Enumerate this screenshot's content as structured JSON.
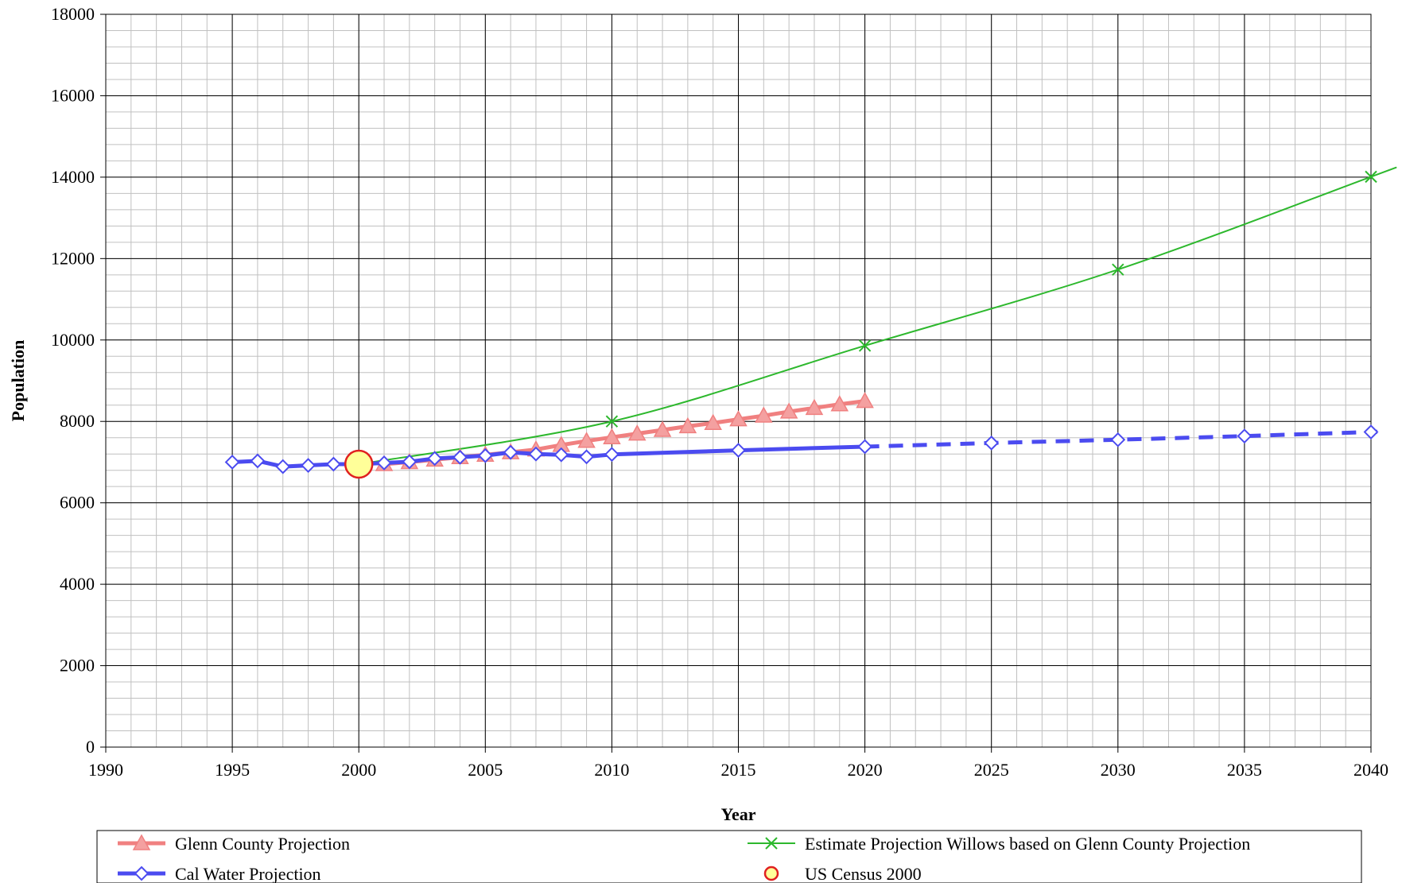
{
  "chart_data": {
    "type": "line",
    "title": "",
    "xlabel": "Year",
    "ylabel": "Population",
    "xlim": [
      1990,
      2040
    ],
    "ylim": [
      0,
      18000
    ],
    "x_ticks": [
      1990,
      1995,
      2000,
      2005,
      2010,
      2015,
      2020,
      2025,
      2030,
      2035,
      2040
    ],
    "y_ticks": [
      0,
      2000,
      4000,
      6000,
      8000,
      10000,
      12000,
      14000,
      16000,
      18000
    ],
    "grid": true,
    "legend_position": "bottom",
    "series": [
      {
        "name": "Glenn County Projection",
        "color": "#f08080",
        "marker": "triangle",
        "x": [
          2001,
          2002,
          2003,
          2004,
          2005,
          2006,
          2007,
          2008,
          2009,
          2010,
          2011,
          2012,
          2013,
          2014,
          2015,
          2016,
          2017,
          2018,
          2019,
          2020
        ],
        "y": [
          6950,
          7000,
          7060,
          7120,
          7180,
          7240,
          7310,
          7420,
          7520,
          7610,
          7700,
          7790,
          7880,
          7960,
          8050,
          8140,
          8240,
          8330,
          8420,
          8500
        ]
      },
      {
        "name": "Estimate Projection Willows based on Glenn County Projection",
        "color": "#2db82d",
        "marker": "x",
        "x": [
          2000,
          2010,
          2020,
          2030,
          2040
        ],
        "y": [
          6950,
          8000,
          9860,
          11730,
          14010
        ]
      },
      {
        "name": "Cal Water Projection",
        "color": "#4b4bf0",
        "marker": "diamond",
        "x": [
          1995,
          1996,
          1997,
          1998,
          1999,
          2000,
          2001,
          2002,
          2003,
          2004,
          2005,
          2006,
          2007,
          2008,
          2009,
          2010,
          2015,
          2020,
          2025,
          2030,
          2035,
          2040
        ],
        "y": [
          7000,
          7030,
          6890,
          6920,
          6950,
          6950,
          6980,
          7010,
          7090,
          7120,
          7160,
          7240,
          7200,
          7180,
          7130,
          7190,
          7290,
          7380,
          7470,
          7550,
          7640,
          7740
        ],
        "dashed_from_x": 2020
      },
      {
        "name": "US Census 2000",
        "color": "#ffff99",
        "marker": "circle",
        "x": [
          2000
        ],
        "y": [
          6950
        ]
      }
    ]
  }
}
